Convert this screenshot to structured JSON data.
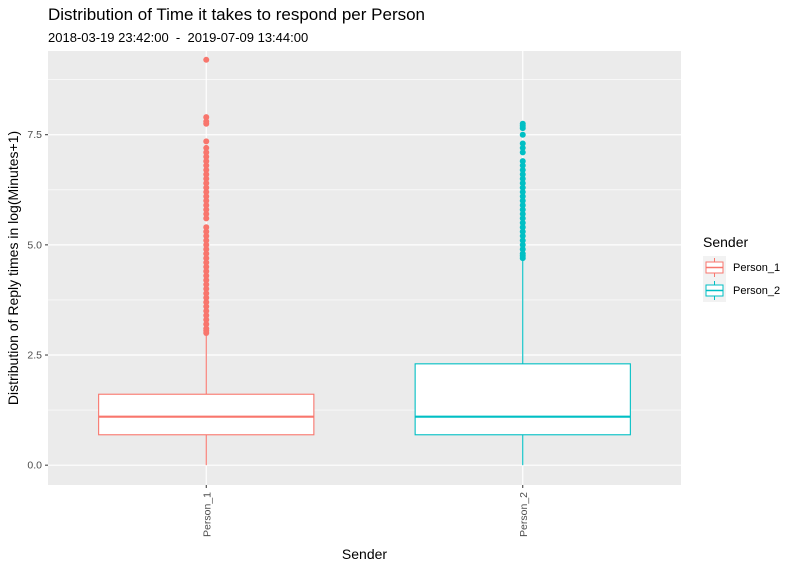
{
  "chart_data": {
    "type": "boxplot",
    "title": "Distribution of Time it takes to respond per Person",
    "subtitle": "2018-03-19 23:42:00  -  2019-07-09 13:44:00",
    "xlabel": "Sender",
    "ylabel": "Distribution of Reply times in log(Minutes+1)",
    "ylim": [
      -0.45,
      9.4
    ],
    "yticks": [
      0.0,
      2.5,
      5.0,
      7.5
    ],
    "ytick_labels": [
      "0.0",
      "2.5",
      "5.0",
      "7.5"
    ],
    "grid": true,
    "legend": {
      "title": "Sender",
      "position": "right"
    },
    "categories": [
      "Person_1",
      "Person_2"
    ],
    "series": [
      {
        "name": "Person_1",
        "color": "#F8766D",
        "whisker_low": 0.0,
        "q1": 0.69,
        "median": 1.1,
        "q3": 1.61,
        "whisker_high": 3.0,
        "outliers": [
          3.0,
          3.05,
          3.1,
          3.2,
          3.3,
          3.4,
          3.5,
          3.6,
          3.7,
          3.8,
          3.9,
          4.0,
          4.1,
          4.2,
          4.3,
          4.4,
          4.5,
          4.6,
          4.7,
          4.8,
          4.9,
          5.0,
          5.1,
          5.2,
          5.3,
          5.4,
          5.6,
          5.7,
          5.8,
          5.9,
          6.0,
          6.1,
          6.2,
          6.3,
          6.4,
          6.5,
          6.6,
          6.7,
          6.8,
          6.9,
          7.0,
          7.1,
          7.2,
          7.35,
          7.75,
          7.8,
          7.9,
          9.2
        ]
      },
      {
        "name": "Person_2",
        "color": "#00BFC4",
        "whisker_low": 0.0,
        "q1": 0.69,
        "median": 1.1,
        "q3": 2.3,
        "whisker_high": 4.7,
        "outliers": [
          4.7,
          4.75,
          4.8,
          4.9,
          5.0,
          5.1,
          5.2,
          5.3,
          5.4,
          5.5,
          5.6,
          5.7,
          5.8,
          5.9,
          6.0,
          6.1,
          6.2,
          6.3,
          6.4,
          6.5,
          6.6,
          6.7,
          6.8,
          6.9,
          7.1,
          7.2,
          7.3,
          7.5,
          7.65,
          7.7,
          7.75
        ]
      }
    ]
  }
}
